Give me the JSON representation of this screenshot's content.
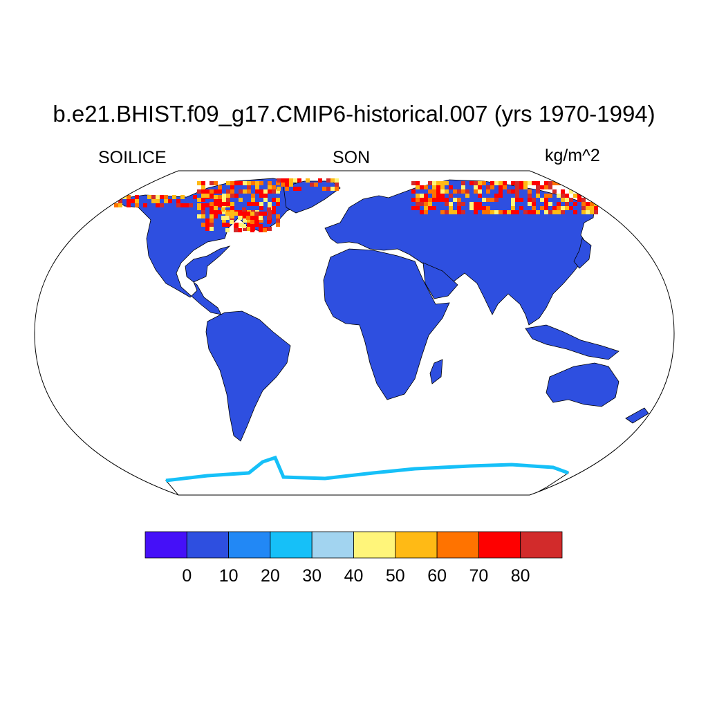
{
  "title": "b.e21.BHIST.f09_g17.CMIP6-historical.007 (yrs 1970-1994)",
  "left_label": "SOILICE",
  "center_label": "SON",
  "units": "kg/m^2",
  "colorbar": {
    "colors": [
      "#4510f8",
      "#2e4fe0",
      "#2288f5",
      "#16c0f8",
      "#a2d4f0",
      "#fff57a",
      "#ffba15",
      "#ff7300",
      "#fe0000",
      "#d22b2b"
    ],
    "tick_labels": [
      "0",
      "10",
      "20",
      "30",
      "40",
      "50",
      "60",
      "70",
      "80"
    ]
  },
  "palette": {
    "land": "#2e4fe0",
    "frozen_high": "#fe0000",
    "frozen_mid": "#ffba15",
    "frozen_low": "#fff57a",
    "antarctic_edge": "#16c0f8",
    "outline": "#000000",
    "background": "#ffffff"
  }
}
